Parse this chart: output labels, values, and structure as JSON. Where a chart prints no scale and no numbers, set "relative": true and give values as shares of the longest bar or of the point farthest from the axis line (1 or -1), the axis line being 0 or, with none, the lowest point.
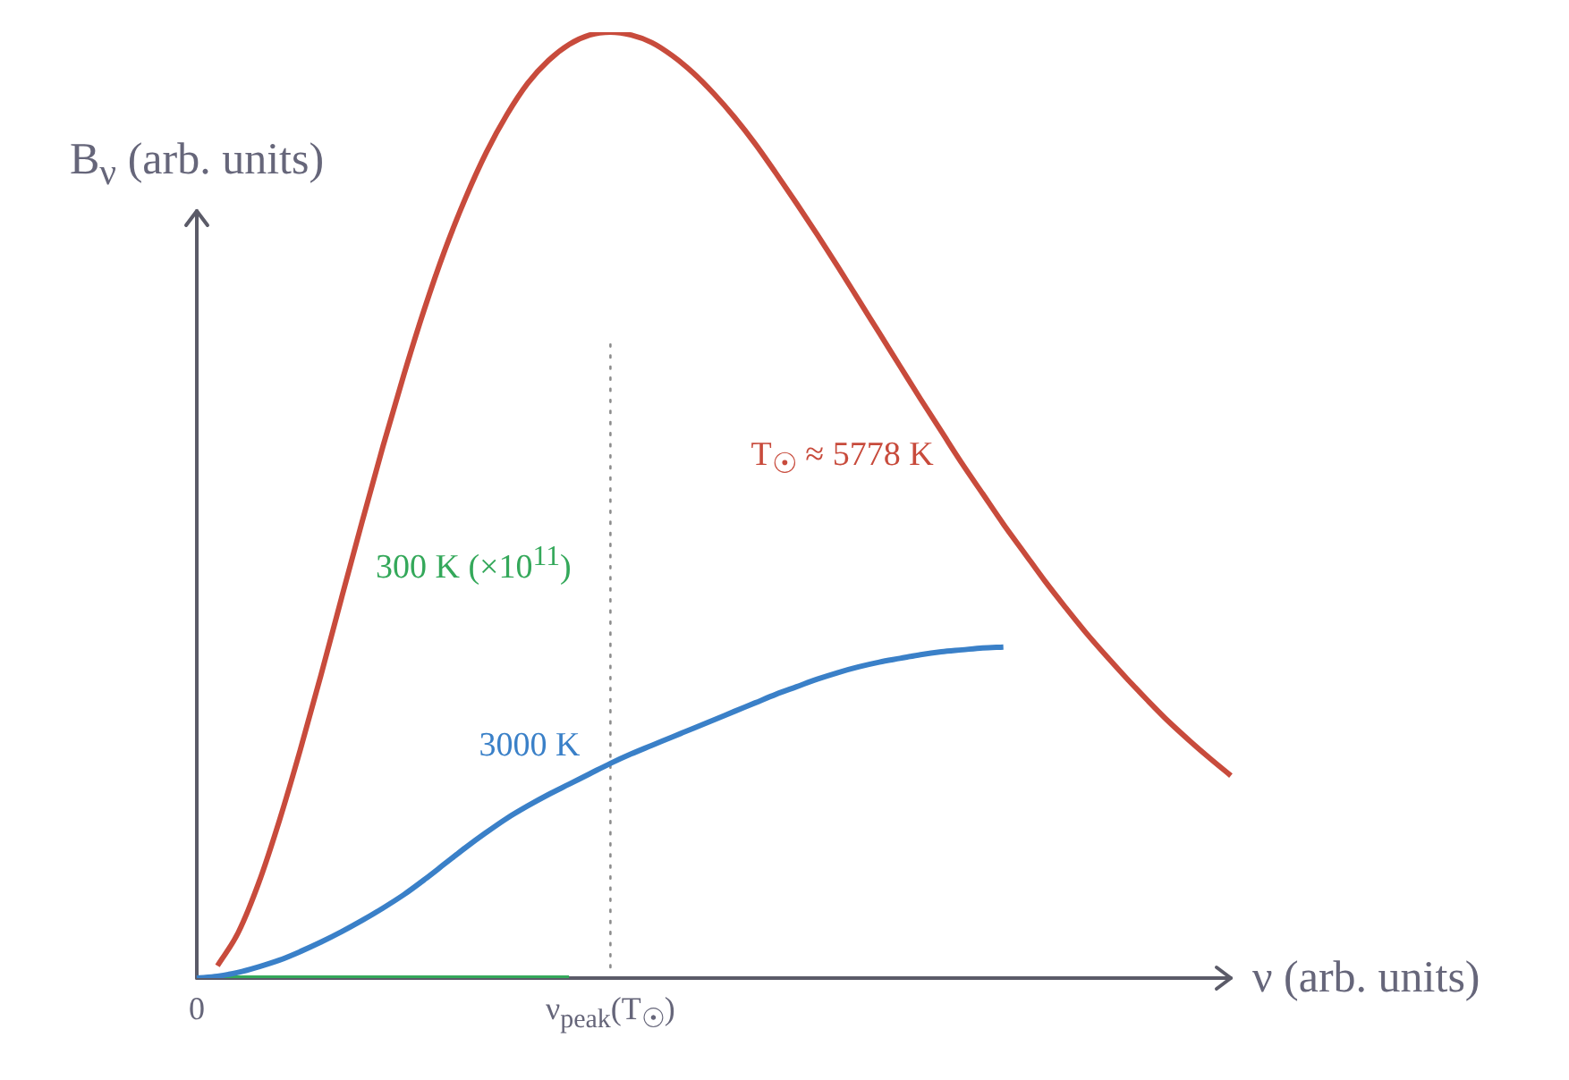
{
  "chart_data": {
    "type": "line",
    "relative": true,
    "xlabel": "ν (arb. units)",
    "ylabel": "B$_{ν}$ (arb. units)",
    "categories": [
      "0",
      null,
      null,
      null,
      null,
      null,
      null,
      null,
      null,
      null,
      null,
      null,
      null,
      null,
      null,
      null,
      null,
      null,
      null,
      null,
      "ν$_{peak}$(T$_{☉}$)",
      null,
      null,
      null,
      null,
      null,
      null,
      null,
      null,
      null,
      null,
      null,
      null,
      null,
      null,
      null,
      null,
      null,
      null,
      null,
      null,
      null,
      null,
      null,
      null,
      null,
      null,
      null,
      null,
      null,
      null
    ],
    "tick_labels": "x",
    "grid": false,
    "legend": false,
    "marker": "none",
    "ref_lines": [
      {
        "axis": "x",
        "value": "ν$_{peak}$(T$_{☉}$)",
        "line_style": "dotted",
        "color": "#8c8c8c"
      }
    ],
    "series": [
      {
        "name": "T$_{☉}$ ≈ 5778 K",
        "color": "#c84b3c",
        "values": [
          null,
          0.013,
          0.048,
          0.101,
          0.167,
          0.241,
          0.32,
          0.402,
          0.483,
          0.562,
          0.637,
          0.707,
          0.77,
          0.825,
          0.873,
          0.913,
          0.946,
          0.97,
          0.987,
          0.997,
          1,
          0.997,
          0.989,
          0.975,
          0.957,
          0.935,
          0.91,
          0.882,
          0.851,
          0.819,
          0.786,
          0.752,
          0.717,
          0.682,
          0.647,
          0.612,
          0.578,
          0.544,
          0.512,
          0.48,
          0.45,
          0.42,
          0.392,
          0.365,
          0.34,
          0.316,
          0.293,
          0.271,
          0.251,
          0.232,
          0.214
        ]
      },
      {
        "name": "3000 K",
        "color": "#3a80c8",
        "values": [
          0,
          0.002,
          0.006,
          0.012,
          0.019,
          0.028,
          0.038,
          0.049,
          0.061,
          0.074,
          0.088,
          0.104,
          0.121,
          0.138,
          0.154,
          0.169,
          0.182,
          0.194,
          0.205,
          0.216,
          0.227,
          0.237,
          0.246,
          0.255,
          0.264,
          0.273,
          0.282,
          0.291,
          0.3,
          0.308,
          0.316,
          0.323,
          0.329,
          0.334,
          0.338,
          0.342,
          0.345,
          0.347,
          0.349,
          0.35,
          null,
          null,
          null,
          null,
          null,
          null,
          null,
          null,
          null,
          null,
          null
        ]
      },
      {
        "name": "300 K (×10$^{11}$)",
        "color": "#34a85a",
        "values": [
          0,
          0,
          0,
          0,
          0,
          0,
          0,
          0,
          0,
          0,
          0,
          0,
          0,
          0,
          0,
          0,
          0,
          0,
          0,
          null,
          null,
          null,
          null,
          null,
          null,
          null,
          null,
          null,
          null,
          null,
          null,
          null,
          null,
          null,
          null,
          null,
          null,
          null,
          null,
          null,
          null,
          null,
          null,
          null,
          null,
          null,
          null,
          null,
          null,
          null,
          null
        ]
      }
    ]
  }
}
